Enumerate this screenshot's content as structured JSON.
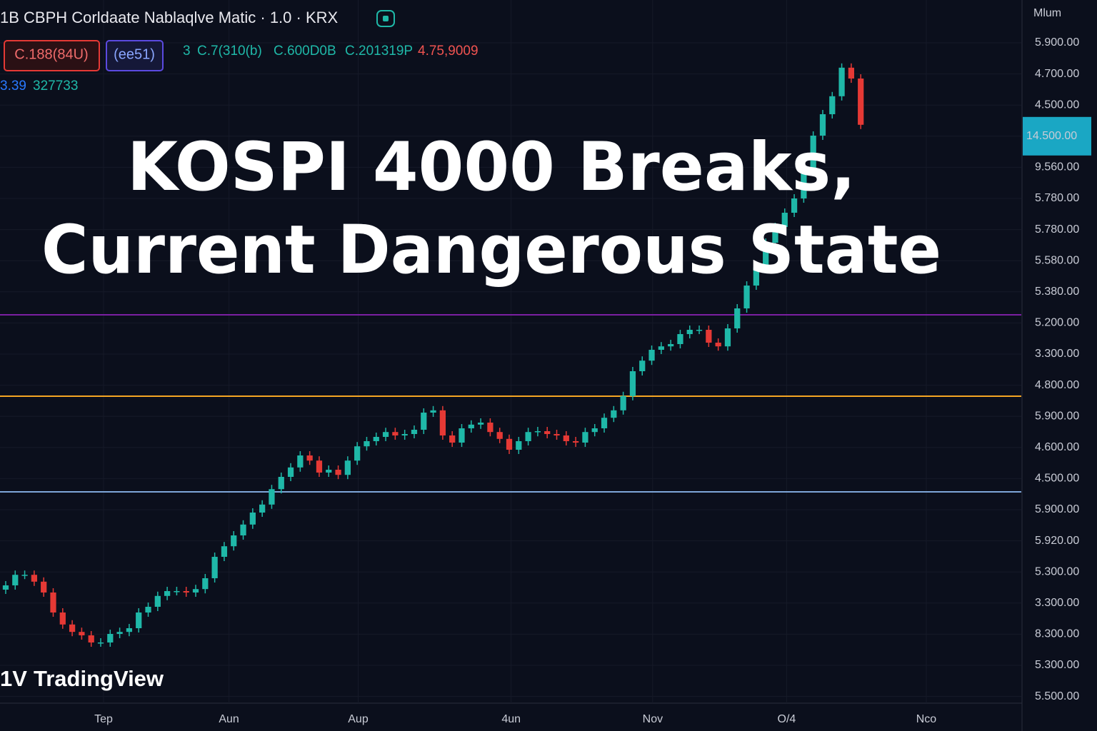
{
  "chart_data": {
    "type": "candlestick",
    "symbol_line": "1B CBPH Corldaate Nablaqlve Matic · 1.0 · KRX",
    "badges": [
      "C.188(84U)",
      "(ee51)"
    ],
    "ohlc_texts": [
      "3",
      "C.7(310(b)",
      "C.600D0B",
      "C.201319P",
      "4.75,9009"
    ],
    "volume_texts": [
      "3.39",
      "327733"
    ],
    "title_lines": [
      "KOSPI 4000 Breaks,",
      "Current Dangerous State"
    ],
    "watermark": "TradingView",
    "watermark_logo": "1V",
    "price_axis_header": "Mlum",
    "price_labels": [
      "5.900.00",
      "4.700.00",
      "4.500.00",
      "9.560.00",
      "5.780.00",
      "5.780.00",
      "5.580.00",
      "5.380.00",
      "5.200.00",
      "3.300.00",
      "4.800.00",
      "5.900.00",
      "4.600.00",
      "4.500.00",
      "5.900.00",
      "5.920.00",
      "5.300.00",
      "3.300.00",
      "8.300.00",
      "5.300.00",
      "5.500.00"
    ],
    "current_price_label": "14.500.00",
    "up_color": "#1fb8a8",
    "down_color": "#e53935",
    "xlim": [
      -0.6,
      106.9
    ],
    "ylim": [
      2000,
      4400
    ],
    "xticks": [
      {
        "value": 10.3,
        "label": "Tep"
      },
      {
        "value": 23.5,
        "label": "Aun"
      },
      {
        "value": 37.1,
        "label": "Aup"
      },
      {
        "value": 53.2,
        "label": "4un"
      },
      {
        "value": 68.1,
        "label": "Nov"
      },
      {
        "value": 82.2,
        "label": "O/4"
      },
      {
        "value": 96.9,
        "label": "Nco"
      }
    ],
    "levels": [
      {
        "value": 3422.5,
        "color": "#7b1fa2"
      },
      {
        "value": 3137.5,
        "color": "#f5a623"
      },
      {
        "value": 2802.5,
        "color": "#7ea6d8"
      }
    ],
    "open": [
      2460,
      2475,
      2512,
      2512,
      2488,
      2450,
      2380,
      2338,
      2312,
      2300,
      2275,
      2275,
      2305,
      2312,
      2325,
      2380,
      2400,
      2438,
      2455,
      2455,
      2450,
      2462,
      2500,
      2575,
      2612,
      2650,
      2688,
      2730,
      2758,
      2812,
      2855,
      2888,
      2930,
      2912,
      2870,
      2880,
      2862,
      2912,
      2962,
      2980,
      2995,
      3012,
      3000,
      3005,
      3020,
      3080,
      3088,
      3000,
      2975,
      3025,
      3038,
      3045,
      3012,
      2988,
      2950,
      2980,
      3012,
      3015,
      3005,
      3000,
      2980,
      2975,
      3012,
      3025,
      3062,
      3088,
      3138,
      3225,
      3262,
      3300,
      3312,
      3320,
      3355,
      3370,
      3370,
      3325,
      3312,
      3375,
      3445,
      3525,
      3588,
      3675,
      3730,
      3780,
      3830,
      3925,
      4050,
      4125,
      4188,
      4288,
      4250
    ],
    "high": [
      2490,
      2527,
      2527,
      2527,
      2503,
      2465,
      2395,
      2353,
      2327,
      2315,
      2290,
      2320,
      2327,
      2340,
      2395,
      2415,
      2453,
      2470,
      2470,
      2470,
      2477,
      2515,
      2590,
      2627,
      2665,
      2703,
      2745,
      2773,
      2827,
      2870,
      2903,
      2945,
      2945,
      2927,
      2895,
      2895,
      2927,
      2977,
      2995,
      3010,
      3027,
      3027,
      3020,
      3035,
      3095,
      3103,
      3103,
      3015,
      3040,
      3053,
      3060,
      3060,
      3027,
      3003,
      2995,
      3027,
      3030,
      3030,
      3020,
      3015,
      2995,
      3027,
      3040,
      3077,
      3103,
      3153,
      3240,
      3277,
      3315,
      3327,
      3335,
      3370,
      3385,
      3385,
      3385,
      3340,
      3390,
      3460,
      3540,
      3603,
      3690,
      3745,
      3795,
      3845,
      3940,
      4065,
      4140,
      4203,
      4303,
      4303,
      4265
    ],
    "low": [
      2445,
      2460,
      2497,
      2473,
      2435,
      2365,
      2323,
      2297,
      2285,
      2260,
      2260,
      2260,
      2290,
      2297,
      2310,
      2365,
      2385,
      2423,
      2440,
      2435,
      2435,
      2447,
      2485,
      2560,
      2597,
      2635,
      2673,
      2715,
      2743,
      2797,
      2840,
      2873,
      2897,
      2855,
      2855,
      2847,
      2847,
      2897,
      2947,
      2965,
      2980,
      2985,
      2985,
      2990,
      3005,
      3065,
      2985,
      2960,
      2960,
      3010,
      3023,
      2997,
      2973,
      2935,
      2935,
      2965,
      2997,
      2990,
      2985,
      2965,
      2960,
      2960,
      2997,
      3010,
      3047,
      3073,
      3123,
      3210,
      3247,
      3285,
      3297,
      3305,
      3340,
      3355,
      3310,
      3297,
      3297,
      3360,
      3430,
      3510,
      3573,
      3660,
      3715,
      3765,
      3815,
      3910,
      4035,
      4110,
      4173,
      4235,
      4073
    ],
    "close": [
      2475,
      2512,
      2512,
      2488,
      2450,
      2380,
      2338,
      2312,
      2300,
      2275,
      2275,
      2305,
      2312,
      2325,
      2380,
      2400,
      2438,
      2455,
      2455,
      2450,
      2462,
      2500,
      2575,
      2612,
      2650,
      2688,
      2730,
      2758,
      2812,
      2855,
      2888,
      2930,
      2912,
      2870,
      2880,
      2862,
      2912,
      2962,
      2980,
      2995,
      3012,
      3000,
      3005,
      3020,
      3080,
      3088,
      3000,
      2975,
      3025,
      3038,
      3045,
      3012,
      2988,
      2950,
      2980,
      3012,
      3015,
      3005,
      3000,
      2980,
      2975,
      3012,
      3025,
      3062,
      3088,
      3138,
      3225,
      3262,
      3300,
      3312,
      3320,
      3355,
      3370,
      3370,
      3325,
      3312,
      3375,
      3445,
      3525,
      3588,
      3675,
      3730,
      3780,
      3830,
      3925,
      4050,
      4125,
      4188,
      4288,
      4250,
      4088
    ]
  }
}
